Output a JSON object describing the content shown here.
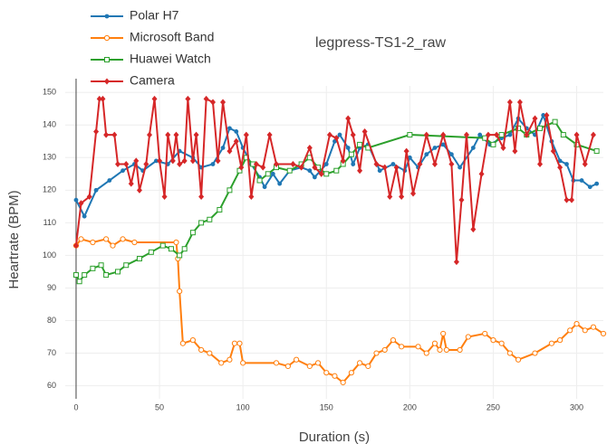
{
  "chart_data": {
    "type": "line",
    "title": "legpress-TS1-2_raw",
    "x_label": "Duration (s)",
    "y_label": "Heartrate (BPM)",
    "xlim": [
      -6.5,
      316
    ],
    "ylim": [
      56,
      152
    ],
    "xticks": [
      0,
      50,
      100,
      150,
      200,
      250,
      300
    ],
    "yticks": [
      60,
      70,
      80,
      90,
      100,
      110,
      120,
      130,
      140,
      150
    ],
    "grid": true,
    "legend": "top-left",
    "series": [
      {
        "name": "Polar H7",
        "color": "#1f77b4",
        "x": [
          0,
          5,
          12,
          20,
          28,
          35,
          40,
          48,
          55,
          62,
          70,
          75,
          82,
          88,
          92,
          96,
          100,
          105,
          110,
          113,
          118,
          122,
          128,
          135,
          140,
          143,
          150,
          155,
          158,
          163,
          166,
          170,
          175,
          182,
          190,
          197,
          200,
          205,
          210,
          215,
          220,
          225,
          230,
          238,
          242,
          248,
          255,
          260,
          265,
          270,
          275,
          280,
          285,
          290,
          294,
          298,
          303,
          308,
          312
        ],
        "values": [
          117,
          112,
          120,
          123,
          126,
          128,
          126,
          129,
          128,
          132,
          130,
          127,
          128,
          133,
          139,
          138,
          133,
          128,
          124,
          121,
          125,
          122,
          126,
          127,
          126,
          124,
          128,
          135,
          137,
          133,
          128,
          133,
          134,
          126,
          128,
          126,
          130,
          127,
          131,
          133,
          134,
          131,
          127,
          133,
          137,
          134,
          136,
          137,
          142,
          139,
          137,
          143,
          135,
          129,
          128,
          123,
          123,
          121,
          122
        ]
      },
      {
        "name": "Microsoft Band",
        "color": "#ff7f0e",
        "x": [
          0,
          3,
          10,
          18,
          22,
          28,
          35,
          60,
          61,
          62,
          64,
          70,
          75,
          80,
          87,
          92,
          95,
          98,
          100,
          120,
          127,
          132,
          140,
          145,
          150,
          155,
          160,
          165,
          170,
          175,
          180,
          185,
          190,
          195,
          205,
          210,
          215,
          218,
          220,
          222,
          230,
          235,
          245,
          250,
          255,
          260,
          265,
          275,
          285,
          290,
          296,
          300,
          305,
          310,
          316
        ],
        "values": [
          103,
          105,
          104,
          105,
          103,
          105,
          104,
          104,
          99,
          89,
          73,
          74,
          71,
          70,
          67,
          68,
          73,
          73,
          67,
          67,
          66,
          68,
          66,
          67,
          64,
          63,
          61,
          64,
          67,
          66,
          70,
          71,
          74,
          72,
          72,
          70,
          73,
          71,
          76,
          71,
          71,
          75,
          76,
          74,
          73,
          70,
          68,
          70,
          73,
          74,
          77,
          79,
          77,
          78,
          76
        ]
      },
      {
        "name": "Huawei Watch",
        "color": "#2ca02c",
        "x": [
          0,
          2,
          5,
          10,
          15,
          18,
          25,
          30,
          38,
          45,
          52,
          57,
          62,
          65,
          70,
          75,
          80,
          86,
          92,
          98,
          102,
          106,
          110,
          115,
          120,
          128,
          135,
          140,
          145,
          150,
          156,
          160,
          165,
          170,
          175,
          200,
          245,
          250,
          255,
          265,
          270,
          278,
          287,
          292,
          300,
          312
        ],
        "values": [
          94,
          92,
          94,
          96,
          97,
          94,
          95,
          97,
          99,
          101,
          103,
          102,
          100,
          102,
          107,
          110,
          111,
          114,
          120,
          126,
          130,
          128,
          123,
          125,
          127,
          126,
          128,
          130,
          127,
          125,
          126,
          128,
          131,
          134,
          133,
          137,
          136,
          134,
          137,
          139,
          137,
          139,
          141,
          137,
          134,
          132
        ]
      },
      {
        "name": "Camera",
        "color": "#d62728",
        "x": [
          0,
          3,
          8,
          12,
          14,
          16,
          18,
          23,
          25,
          30,
          33,
          36,
          38,
          42,
          44,
          47,
          50,
          53,
          55,
          58,
          60,
          62,
          65,
          67,
          70,
          72,
          75,
          78,
          82,
          85,
          88,
          92,
          96,
          99,
          102,
          105,
          108,
          112,
          116,
          120,
          130,
          135,
          140,
          143,
          147,
          152,
          156,
          160,
          163,
          166,
          170,
          173,
          180,
          185,
          188,
          192,
          195,
          198,
          202,
          206,
          210,
          215,
          220,
          225,
          228,
          231,
          234,
          238,
          243,
          247,
          252,
          256,
          260,
          263,
          266,
          270,
          275,
          278,
          282,
          286,
          290,
          294,
          297,
          300,
          305,
          310
        ],
        "values": [
          103,
          116,
          118,
          138,
          148,
          148,
          137,
          137,
          128,
          128,
          122,
          129,
          120,
          128,
          137,
          148,
          129,
          118,
          137,
          129,
          137,
          128,
          129,
          148,
          129,
          137,
          118,
          148,
          147,
          129,
          147,
          132,
          135,
          127,
          137,
          118,
          128,
          127,
          137,
          128,
          128,
          127,
          133,
          127,
          125,
          137,
          136,
          129,
          142,
          137,
          126,
          138,
          128,
          127,
          118,
          127,
          118,
          132,
          119,
          128,
          137,
          128,
          137,
          128,
          98,
          117,
          137,
          108,
          125,
          137,
          137,
          133,
          147,
          132,
          147,
          137,
          142,
          128,
          143,
          132,
          127,
          117,
          117,
          137,
          128,
          137
        ]
      }
    ]
  }
}
